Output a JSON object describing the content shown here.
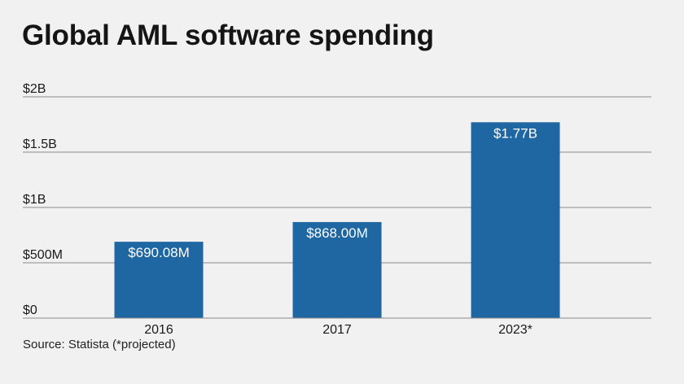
{
  "chart_data": {
    "type": "bar",
    "title": "Global AML software spending",
    "categories": [
      "2016",
      "2017",
      "2023*"
    ],
    "values": [
      690.08,
      868.0,
      1770
    ],
    "value_unit": "millions USD",
    "data_labels": [
      "$690.08M",
      "$868.00M",
      "$1.77B"
    ],
    "y_ticks": [
      0,
      500,
      1000,
      1500,
      2000
    ],
    "y_tick_labels": [
      "$0",
      "$500M",
      "$1B",
      "$1.5B",
      "$2B"
    ],
    "ylim": [
      0,
      2000
    ],
    "xlabel": "",
    "ylabel": "",
    "grid": true,
    "bar_color": "#1f67a3",
    "grid_color": "#8a8a8a",
    "source": "Source: Statista (*projected)"
  }
}
